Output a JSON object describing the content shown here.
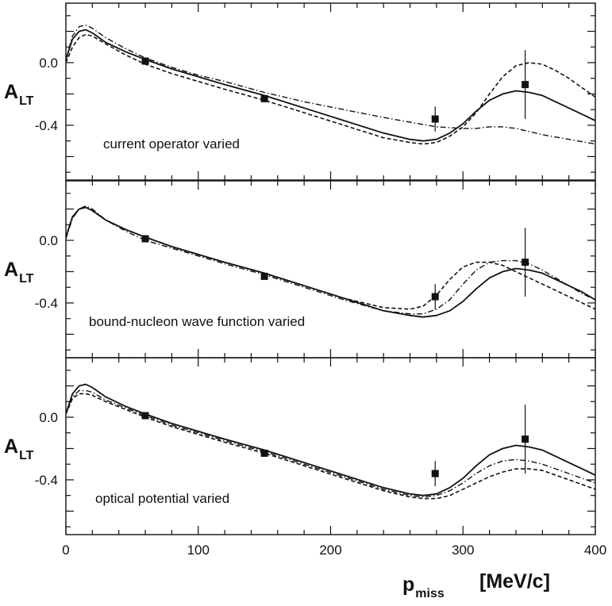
{
  "chart_data": {
    "type": "line",
    "x_label": "p",
    "x_label_sub": "miss",
    "x_unit": "[MeV/c]",
    "xlim": [
      0,
      400
    ],
    "x_ticks": [
      0,
      100,
      200,
      300,
      400
    ],
    "x_tick_labels": [
      "0",
      "100",
      "200",
      "300",
      "400"
    ],
    "panels": [
      {
        "y_label": "A",
        "y_label_sub": "LT",
        "annotation": "current operator varied",
        "ylim": [
          -0.75,
          0.38
        ],
        "y_ticks": [
          0.0,
          -0.4
        ],
        "y_tick_labels": [
          "0.0",
          "-0.4"
        ],
        "data_points": [
          {
            "x": 60,
            "y": 0.01,
            "err": 0.0
          },
          {
            "x": 150,
            "y": -0.23,
            "err": 0.0
          },
          {
            "x": 279,
            "y": -0.36,
            "err": 0.08
          },
          {
            "x": 347,
            "y": -0.14,
            "err": 0.22
          }
        ],
        "series": [
          {
            "name": "solid",
            "style": "solid",
            "x": [
              0,
              5,
              10,
              15,
              20,
              30,
              45,
              60,
              80,
              100,
              120,
              150,
              180,
              210,
              240,
              260,
              270,
              280,
              290,
              300,
              310,
              320,
              330,
              340,
              350,
              360,
              370,
              380,
              390,
              400
            ],
            "y": [
              0.02,
              0.15,
              0.2,
              0.21,
              0.19,
              0.13,
              0.07,
              0.02,
              -0.04,
              -0.09,
              -0.14,
              -0.21,
              -0.29,
              -0.37,
              -0.45,
              -0.49,
              -0.5,
              -0.49,
              -0.45,
              -0.39,
              -0.31,
              -0.24,
              -0.2,
              -0.18,
              -0.19,
              -0.21,
              -0.25,
              -0.29,
              -0.33,
              -0.37
            ]
          },
          {
            "name": "dashed",
            "style": "dashed",
            "x": [
              0,
              5,
              10,
              15,
              20,
              30,
              45,
              60,
              80,
              100,
              120,
              150,
              180,
              210,
              240,
              260,
              270,
              280,
              290,
              300,
              310,
              320,
              330,
              340,
              350,
              360,
              370,
              380,
              390,
              400
            ],
            "y": [
              0.0,
              0.1,
              0.16,
              0.18,
              0.17,
              0.12,
              0.05,
              -0.01,
              -0.07,
              -0.12,
              -0.17,
              -0.24,
              -0.32,
              -0.4,
              -0.48,
              -0.51,
              -0.52,
              -0.51,
              -0.47,
              -0.41,
              -0.32,
              -0.2,
              -0.09,
              -0.02,
              0.0,
              -0.01,
              -0.05,
              -0.1,
              -0.16,
              -0.22
            ]
          },
          {
            "name": "dash-dot",
            "style": "dashdot",
            "x": [
              0,
              5,
              10,
              15,
              20,
              30,
              45,
              60,
              80,
              100,
              120,
              150,
              180,
              210,
              240,
              260,
              280,
              300,
              310,
              320,
              330,
              340,
              360,
              380,
              400
            ],
            "y": [
              0.02,
              0.17,
              0.23,
              0.24,
              0.22,
              0.16,
              0.09,
              0.03,
              -0.03,
              -0.08,
              -0.12,
              -0.19,
              -0.25,
              -0.3,
              -0.35,
              -0.38,
              -0.41,
              -0.42,
              -0.42,
              -0.41,
              -0.41,
              -0.42,
              -0.46,
              -0.49,
              -0.52
            ]
          }
        ]
      },
      {
        "y_label": "A",
        "y_label_sub": "LT",
        "annotation": "bound-nucleon wave function varied",
        "ylim": [
          -0.75,
          0.38
        ],
        "y_ticks": [
          0.0,
          -0.4
        ],
        "y_tick_labels": [
          "0.0",
          "-0.4"
        ],
        "data_points": [
          {
            "x": 60,
            "y": 0.01,
            "err": 0.0
          },
          {
            "x": 150,
            "y": -0.23,
            "err": 0.0
          },
          {
            "x": 279,
            "y": -0.36,
            "err": 0.08
          },
          {
            "x": 347,
            "y": -0.14,
            "err": 0.22
          }
        ],
        "series": [
          {
            "name": "solid",
            "style": "solid",
            "x": [
              0,
              5,
              10,
              15,
              20,
              30,
              45,
              60,
              80,
              100,
              120,
              150,
              180,
              210,
              240,
              260,
              270,
              280,
              290,
              300,
              310,
              320,
              330,
              340,
              350,
              360,
              370,
              380,
              390,
              400
            ],
            "y": [
              0.02,
              0.15,
              0.2,
              0.21,
              0.19,
              0.13,
              0.07,
              0.02,
              -0.04,
              -0.09,
              -0.14,
              -0.21,
              -0.29,
              -0.37,
              -0.45,
              -0.48,
              -0.49,
              -0.48,
              -0.45,
              -0.39,
              -0.31,
              -0.24,
              -0.2,
              -0.18,
              -0.19,
              -0.21,
              -0.25,
              -0.29,
              -0.33,
              -0.38
            ]
          },
          {
            "name": "dashed",
            "style": "dashed",
            "x": [
              0,
              5,
              10,
              15,
              20,
              30,
              45,
              60,
              80,
              100,
              120,
              150,
              180,
              210,
              240,
              260,
              270,
              280,
              290,
              300,
              310,
              320,
              330,
              340,
              350,
              360,
              370,
              380,
              390,
              400
            ],
            "y": [
              0.02,
              0.15,
              0.2,
              0.21,
              0.19,
              0.13,
              0.07,
              0.02,
              -0.04,
              -0.09,
              -0.14,
              -0.21,
              -0.29,
              -0.37,
              -0.43,
              -0.44,
              -0.42,
              -0.35,
              -0.25,
              -0.17,
              -0.14,
              -0.14,
              -0.16,
              -0.2,
              -0.24,
              -0.28,
              -0.32,
              -0.36,
              -0.4,
              -0.44
            ]
          },
          {
            "name": "dash-dot",
            "style": "dashdot",
            "x": [
              0,
              5,
              10,
              15,
              20,
              30,
              45,
              60,
              80,
              100,
              120,
              150,
              180,
              210,
              240,
              260,
              270,
              280,
              290,
              300,
              310,
              320,
              330,
              340,
              350,
              360,
              370,
              380,
              390,
              400
            ],
            "y": [
              0.01,
              0.14,
              0.2,
              0.22,
              0.2,
              0.13,
              0.06,
              0.0,
              -0.05,
              -0.1,
              -0.15,
              -0.22,
              -0.3,
              -0.38,
              -0.45,
              -0.47,
              -0.47,
              -0.44,
              -0.38,
              -0.28,
              -0.19,
              -0.14,
              -0.13,
              -0.13,
              -0.15,
              -0.19,
              -0.24,
              -0.29,
              -0.34,
              -0.38
            ]
          }
        ]
      },
      {
        "y_label": "A",
        "y_label_sub": "LT",
        "annotation": "optical potential varied",
        "ylim": [
          -0.75,
          0.38
        ],
        "y_ticks": [
          0.0,
          -0.4
        ],
        "y_tick_labels": [
          "0.0",
          "-0.4"
        ],
        "data_points": [
          {
            "x": 60,
            "y": 0.01,
            "err": 0.0
          },
          {
            "x": 150,
            "y": -0.23,
            "err": 0.0
          },
          {
            "x": 279,
            "y": -0.36,
            "err": 0.08
          },
          {
            "x": 347,
            "y": -0.14,
            "err": 0.22
          }
        ],
        "series": [
          {
            "name": "solid",
            "style": "solid",
            "x": [
              0,
              5,
              10,
              15,
              20,
              30,
              45,
              60,
              80,
              100,
              120,
              150,
              180,
              210,
              240,
              260,
              270,
              280,
              290,
              300,
              310,
              320,
              330,
              340,
              350,
              360,
              370,
              380,
              390,
              400
            ],
            "y": [
              0.02,
              0.15,
              0.2,
              0.21,
              0.19,
              0.13,
              0.07,
              0.02,
              -0.04,
              -0.09,
              -0.14,
              -0.21,
              -0.29,
              -0.37,
              -0.45,
              -0.49,
              -0.5,
              -0.49,
              -0.45,
              -0.39,
              -0.31,
              -0.24,
              -0.2,
              -0.18,
              -0.19,
              -0.21,
              -0.25,
              -0.29,
              -0.33,
              -0.37
            ]
          },
          {
            "name": "dashed",
            "style": "dashed",
            "x": [
              0,
              5,
              10,
              15,
              20,
              30,
              45,
              60,
              80,
              100,
              120,
              150,
              180,
              210,
              240,
              260,
              270,
              280,
              290,
              300,
              310,
              320,
              330,
              340,
              350,
              360,
              370,
              380,
              390,
              400
            ],
            "y": [
              0.02,
              0.12,
              0.15,
              0.15,
              0.14,
              0.1,
              0.05,
              0.0,
              -0.06,
              -0.11,
              -0.16,
              -0.23,
              -0.31,
              -0.39,
              -0.47,
              -0.51,
              -0.52,
              -0.52,
              -0.5,
              -0.46,
              -0.42,
              -0.38,
              -0.35,
              -0.33,
              -0.33,
              -0.34,
              -0.37,
              -0.4,
              -0.43,
              -0.46
            ]
          },
          {
            "name": "dash-dot",
            "style": "dashdot",
            "x": [
              0,
              5,
              10,
              15,
              20,
              30,
              45,
              60,
              80,
              100,
              120,
              150,
              180,
              210,
              240,
              260,
              270,
              280,
              290,
              300,
              310,
              320,
              330,
              340,
              350,
              360,
              370,
              380,
              390,
              400
            ],
            "y": [
              0.02,
              0.13,
              0.17,
              0.17,
              0.16,
              0.11,
              0.06,
              0.01,
              -0.05,
              -0.1,
              -0.15,
              -0.22,
              -0.3,
              -0.38,
              -0.46,
              -0.5,
              -0.51,
              -0.5,
              -0.47,
              -0.42,
              -0.36,
              -0.31,
              -0.28,
              -0.27,
              -0.28,
              -0.3,
              -0.33,
              -0.36,
              -0.39,
              -0.42
            ]
          }
        ]
      }
    ]
  }
}
